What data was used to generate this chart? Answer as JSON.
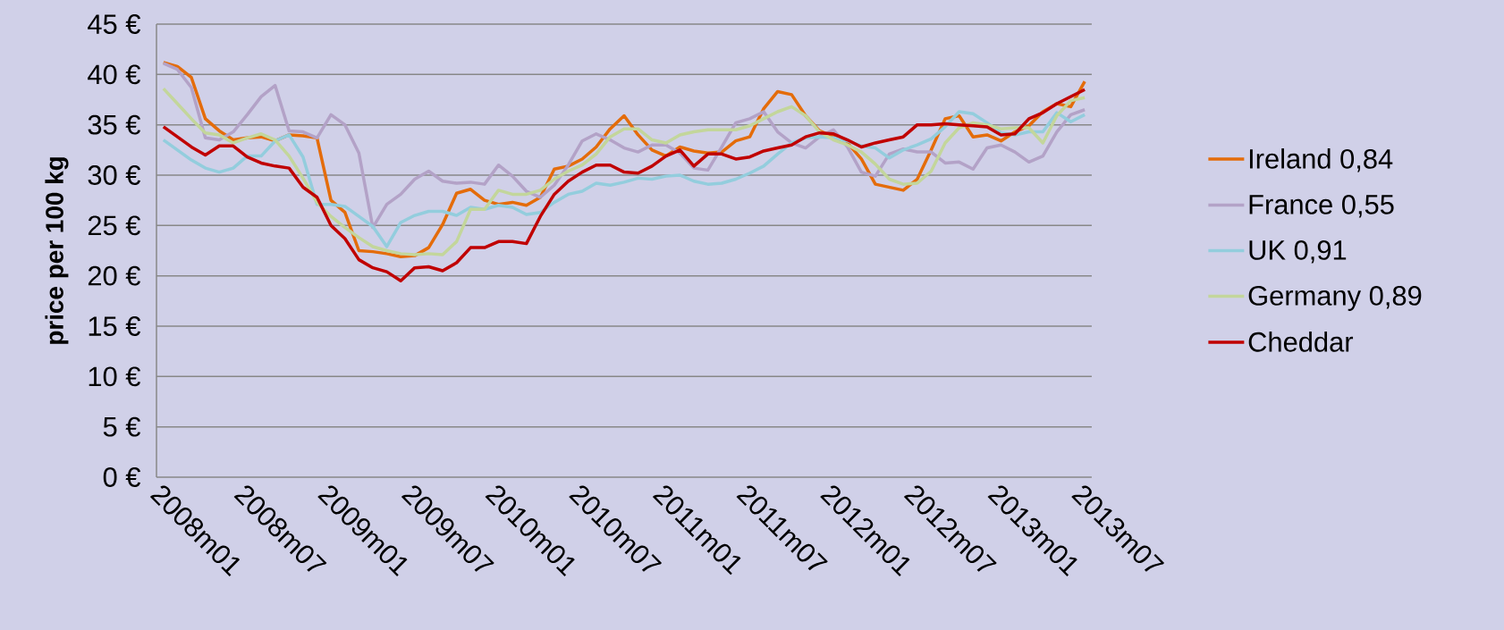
{
  "chart_data": {
    "type": "line",
    "categories": [
      "2008m01",
      null,
      null,
      null,
      null,
      null,
      "2008m07",
      null,
      null,
      null,
      null,
      null,
      "2009m01",
      null,
      null,
      null,
      null,
      null,
      "2009m07",
      null,
      null,
      null,
      null,
      null,
      "2010m01",
      null,
      null,
      null,
      null,
      null,
      "2010m07",
      null,
      null,
      null,
      null,
      null,
      "2011m01",
      null,
      null,
      null,
      null,
      null,
      "2011m07",
      null,
      null,
      null,
      null,
      null,
      "2012m01",
      null,
      null,
      null,
      null,
      null,
      "2012m07",
      null,
      null,
      null,
      null,
      null,
      "2013m01",
      null,
      null,
      null,
      null,
      null,
      "2013m07"
    ],
    "series": [
      {
        "name": "Ireland 0,84",
        "color": "#e46c0a",
        "values": [
          41.2,
          40.8,
          39.7,
          35.6,
          34.4,
          33.5,
          33.7,
          33.8,
          33.4,
          34.0,
          33.9,
          33.7,
          27.5,
          26.3,
          22.5,
          22.4,
          22.2,
          21.9,
          22.0,
          22.8,
          25.1,
          28.2,
          28.6,
          27.5,
          27.1,
          27.3,
          27.0,
          27.8,
          30.6,
          30.9,
          31.6,
          32.8,
          34.6,
          35.9,
          34.0,
          32.5,
          31.9,
          32.8,
          32.4,
          32.2,
          32.3,
          33.4,
          33.8,
          36.6,
          38.3,
          38.0,
          35.9,
          34.4,
          33.8,
          33.2,
          31.6,
          29.1,
          28.8,
          28.5,
          29.6,
          32.5,
          35.6,
          35.9,
          33.8,
          34.0,
          33.4,
          34.3,
          34.9,
          36.3,
          37.1,
          36.8,
          39.3
        ]
      },
      {
        "name": "France 0,55",
        "color": "#b3a2c7",
        "values": [
          41.1,
          40.5,
          38.7,
          33.7,
          33.5,
          34.3,
          36.0,
          37.8,
          38.9,
          34.4,
          34.3,
          33.7,
          36.0,
          35.0,
          32.2,
          24.8,
          27.1,
          28.1,
          29.6,
          30.4,
          29.4,
          29.2,
          29.3,
          29.1,
          31.0,
          29.9,
          28.4,
          27.8,
          29.0,
          31.0,
          33.4,
          34.1,
          33.5,
          32.7,
          32.3,
          33.0,
          33.0,
          32.2,
          30.7,
          30.5,
          32.8,
          35.2,
          35.6,
          36.3,
          34.3,
          33.2,
          32.7,
          33.8,
          34.5,
          32.8,
          30.3,
          29.9,
          32.1,
          32.6,
          32.3,
          32.3,
          31.2,
          31.3,
          30.6,
          32.7,
          33.0,
          32.3,
          31.3,
          31.9,
          34.3,
          36.0,
          36.5
        ]
      },
      {
        "name": "UK 0,91",
        "color": "#93cddd",
        "values": [
          33.5,
          32.5,
          31.5,
          30.7,
          30.3,
          30.7,
          31.9,
          31.9,
          33.4,
          34.0,
          31.8,
          27.1,
          27.1,
          26.9,
          25.9,
          24.9,
          22.9,
          25.3,
          26.0,
          26.4,
          26.4,
          26.0,
          26.8,
          26.6,
          27.0,
          26.8,
          26.1,
          26.3,
          27.3,
          28.1,
          28.4,
          29.2,
          29.0,
          29.3,
          29.7,
          29.6,
          29.9,
          30.0,
          29.4,
          29.1,
          29.2,
          29.6,
          30.2,
          30.9,
          32.1,
          33.2,
          33.7,
          33.8,
          33.7,
          33.4,
          32.9,
          32.7,
          31.7,
          32.5,
          33.0,
          33.6,
          34.8,
          36.3,
          36.1,
          35.2,
          34.2,
          34.0,
          34.3,
          34.3,
          36.2,
          35.3,
          36.0
        ]
      },
      {
        "name": "Germany 0,89",
        "color": "#c3d69b",
        "values": [
          38.6,
          37.1,
          35.6,
          34.2,
          34.0,
          33.2,
          33.7,
          34.1,
          33.5,
          31.9,
          29.7,
          27.3,
          25.9,
          24.8,
          23.8,
          22.9,
          22.5,
          22.2,
          22.1,
          22.2,
          22.1,
          23.4,
          26.6,
          26.6,
          28.5,
          28.1,
          28.1,
          28.5,
          29.6,
          30.4,
          31.0,
          32.1,
          33.8,
          34.6,
          34.6,
          33.5,
          33.2,
          34.0,
          34.3,
          34.5,
          34.5,
          34.5,
          34.9,
          35.6,
          36.3,
          36.8,
          35.9,
          34.3,
          33.5,
          33.0,
          32.3,
          31.1,
          29.6,
          29.1,
          29.2,
          30.4,
          33.2,
          34.7,
          35.2,
          35.0,
          34.6,
          34.7,
          34.7,
          33.2,
          35.9,
          37.4,
          37.7
        ]
      },
      {
        "name": "Cheddar",
        "color": "#c00000",
        "values": [
          34.8,
          33.8,
          32.8,
          32.0,
          32.9,
          32.9,
          31.8,
          31.2,
          30.9,
          30.7,
          28.8,
          27.8,
          25.0,
          23.7,
          21.6,
          20.8,
          20.4,
          19.5,
          20.8,
          20.9,
          20.5,
          21.3,
          22.8,
          22.8,
          23.4,
          23.4,
          23.2,
          25.9,
          28.1,
          29.4,
          30.3,
          31.0,
          31.0,
          30.3,
          30.2,
          30.9,
          31.9,
          32.5,
          30.9,
          32.1,
          32.1,
          31.6,
          31.8,
          32.4,
          32.7,
          33.0,
          33.8,
          34.2,
          34.1,
          33.5,
          32.8,
          33.2,
          33.5,
          33.8,
          35.0,
          35.0,
          35.1,
          35.0,
          34.9,
          34.8,
          34.0,
          34.1,
          35.6,
          36.2,
          37.1,
          37.8,
          38.5
        ]
      }
    ],
    "ylabel": "price per 100 kg",
    "ylim": [
      0,
      45
    ],
    "yticks": [
      {
        "value": 0,
        "label": "0 €"
      },
      {
        "value": 5,
        "label": "5 €"
      },
      {
        "value": 10,
        "label": "10 €"
      },
      {
        "value": 15,
        "label": "15 €"
      },
      {
        "value": 20,
        "label": "20 €"
      },
      {
        "value": 25,
        "label": "25 €"
      },
      {
        "value": 30,
        "label": "30 €"
      },
      {
        "value": 35,
        "label": "35 €"
      },
      {
        "value": 40,
        "label": "40 €"
      },
      {
        "value": 45,
        "label": "45 €"
      }
    ],
    "grid": "y",
    "legend": "right",
    "marker": "none",
    "line_style": "solid"
  }
}
